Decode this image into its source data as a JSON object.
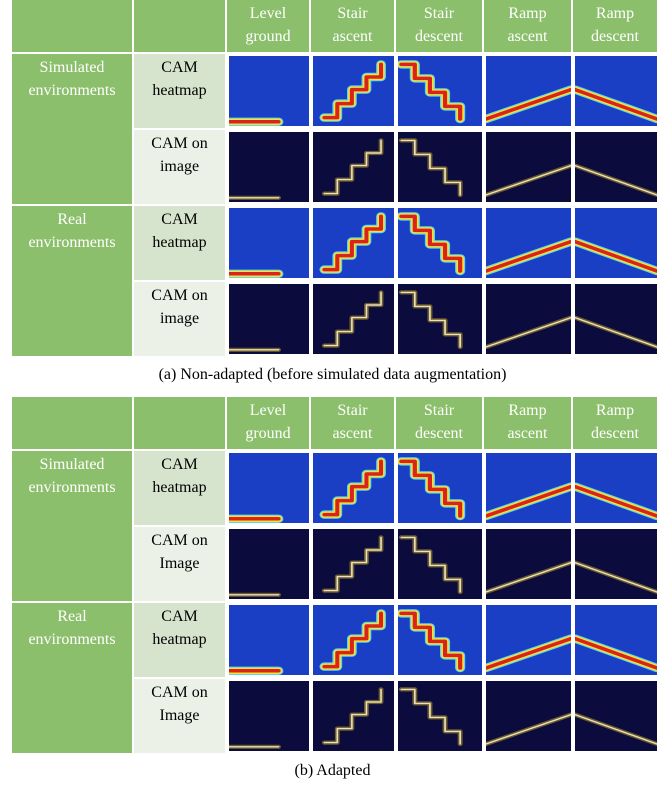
{
  "panels": [
    {
      "header": [
        [
          "Level",
          "ground"
        ],
        [
          "Stair",
          "ascent"
        ],
        [
          "Stair",
          "descent"
        ],
        [
          "Ramp",
          "ascent"
        ],
        [
          "Ramp",
          "descent"
        ]
      ],
      "groups": [
        [
          "Simulated",
          "environments"
        ],
        [
          "Real",
          "environments"
        ]
      ],
      "rows": [
        [
          "CAM",
          "heatmap"
        ],
        [
          "CAM on",
          "image"
        ],
        [
          "CAM",
          "heatmap"
        ],
        [
          "CAM on",
          "image"
        ]
      ],
      "caption": "(a) Non-adapted (before simulated data augmentation)"
    },
    {
      "header": [
        [
          "Level",
          "ground"
        ],
        [
          "Stair",
          "ascent"
        ],
        [
          "Stair",
          "descent"
        ],
        [
          "Ramp",
          "ascent"
        ],
        [
          "Ramp",
          "descent"
        ]
      ],
      "groups": [
        [
          "Simulated",
          "environments"
        ],
        [
          "Real",
          "environments"
        ]
      ],
      "rows": [
        [
          "CAM",
          "heatmap"
        ],
        [
          "CAM on",
          "Image"
        ],
        [
          "CAM",
          "heatmap"
        ],
        [
          "CAM on",
          "Image"
        ]
      ],
      "caption": "(b) Adapted"
    }
  ]
}
